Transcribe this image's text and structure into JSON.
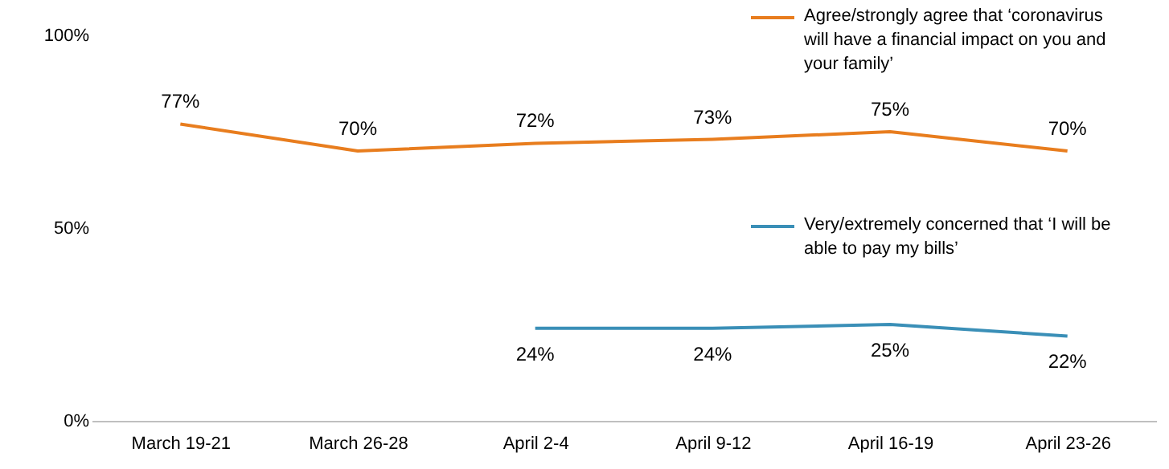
{
  "chart_data": {
    "type": "line",
    "categories": [
      "March 19-21",
      "March 26-28",
      "April 2-4",
      "April 9-12",
      "April 16-19",
      "April 23-26"
    ],
    "ylim": [
      0,
      100
    ],
    "yticks": [
      {
        "value": 0,
        "label": "0%"
      },
      {
        "value": 50,
        "label": "50%"
      },
      {
        "value": 100,
        "label": "100%"
      }
    ],
    "grid": false,
    "legend": "right",
    "series": [
      {
        "name": "Agree/strongly agree that ‘coronavirus will have a financial impact on you and your family’",
        "color": "#e87d1e",
        "values": [
          77,
          70,
          72,
          73,
          75,
          70
        ],
        "value_labels": [
          "77%",
          "70%",
          "72%",
          "73%",
          "75%",
          "70%"
        ]
      },
      {
        "name": "Very/extremely concerned that ‘I will be able to pay my bills’",
        "color": "#3a8fb7",
        "values": [
          null,
          null,
          24,
          24,
          25,
          22
        ],
        "value_labels": [
          null,
          null,
          "24%",
          "24%",
          "25%",
          "22%"
        ]
      }
    ]
  }
}
